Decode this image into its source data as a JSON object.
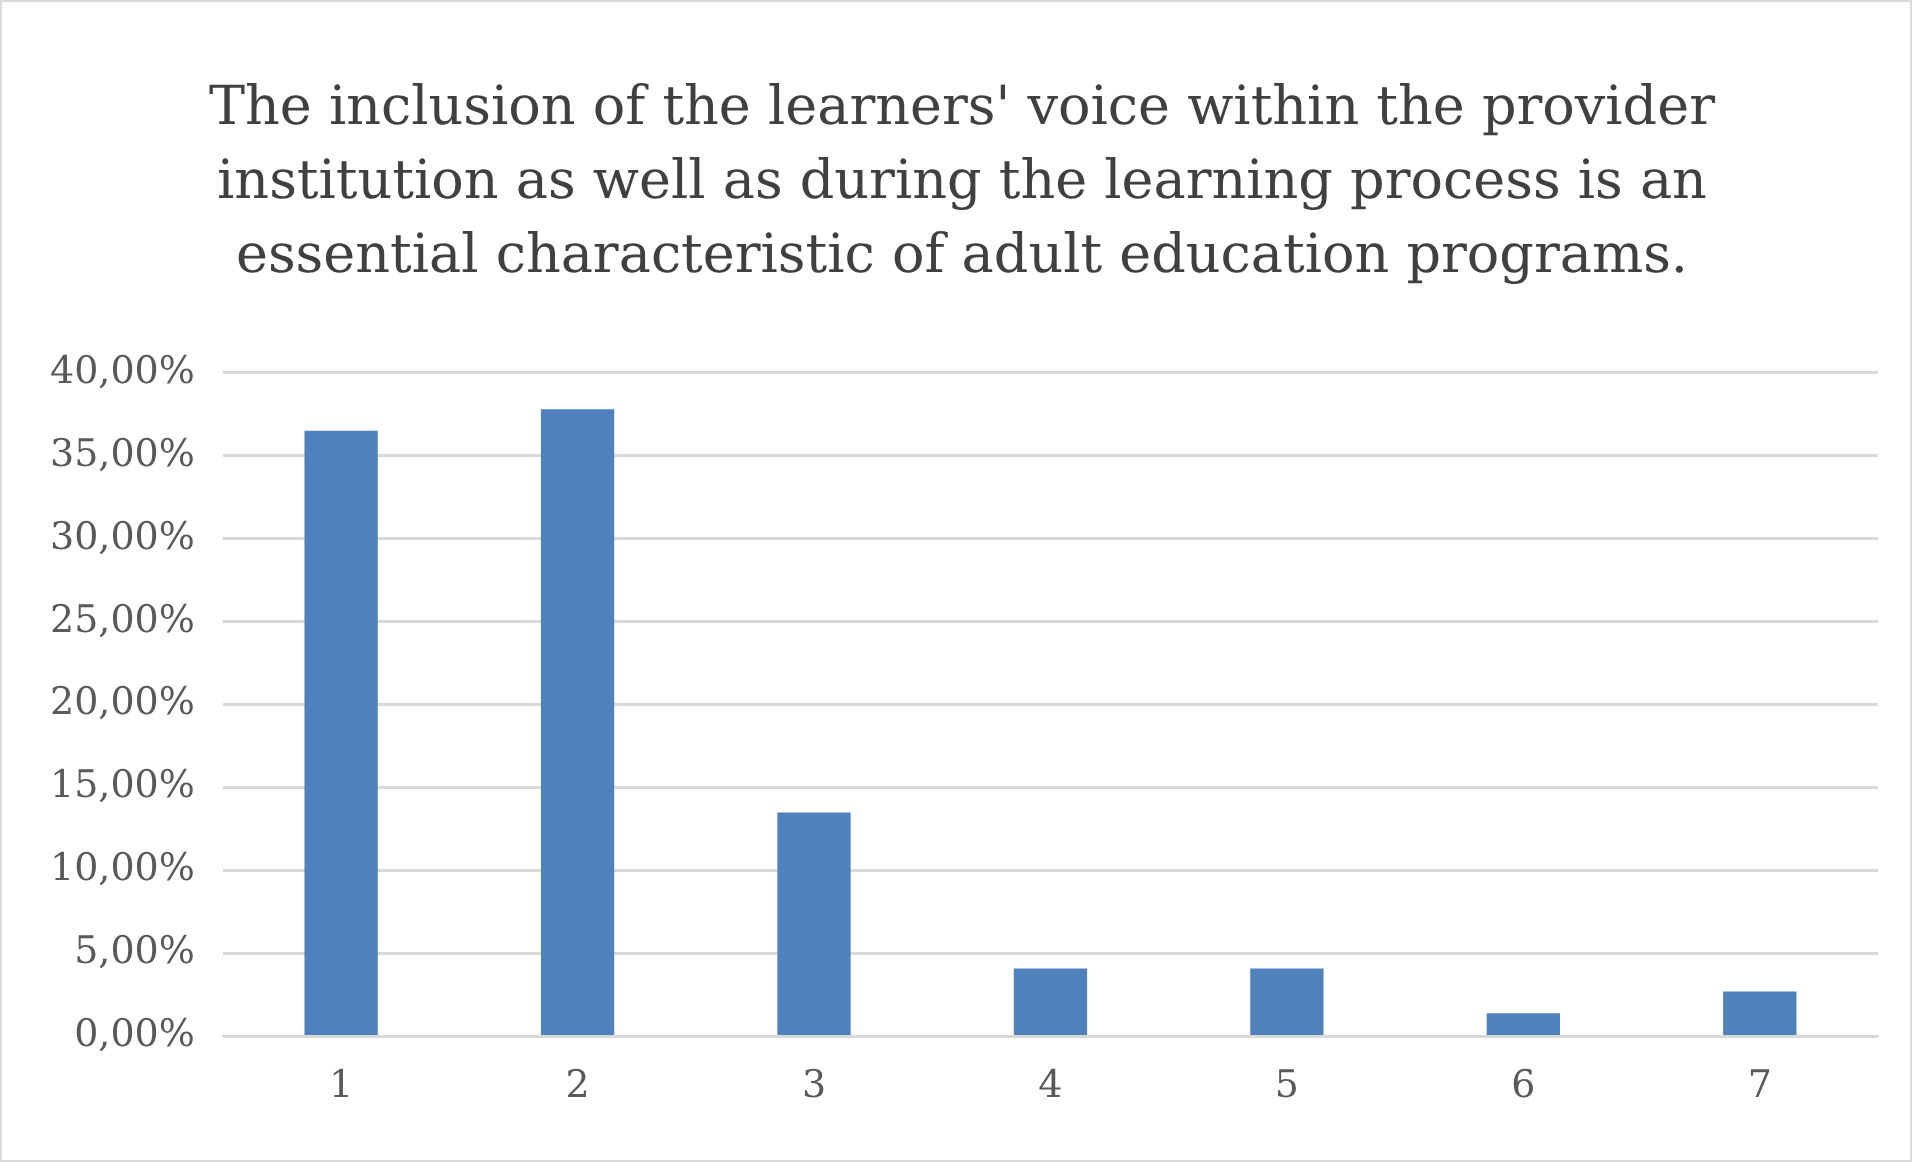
{
  "chart_data": {
    "type": "bar",
    "title": "The inclusion of the learners' voice within the provider institution as well as during the learning process is an essential characteristic of adult education programs.",
    "categories": [
      "1",
      "2",
      "3",
      "4",
      "5",
      "6",
      "7"
    ],
    "values": [
      36.5,
      37.8,
      13.5,
      4.1,
      4.1,
      1.4,
      2.7
    ],
    "color": "#4f81bd",
    "ylim": [
      0,
      40
    ],
    "yticks": [
      {
        "value": 0,
        "label": "0,00%"
      },
      {
        "value": 5,
        "label": "5,00%"
      },
      {
        "value": 10,
        "label": "10,00%"
      },
      {
        "value": 15,
        "label": "15,00%"
      },
      {
        "value": 20,
        "label": "20,00%"
      },
      {
        "value": 25,
        "label": "25,00%"
      },
      {
        "value": 30,
        "label": "30,00%"
      },
      {
        "value": 35,
        "label": "35,00%"
      },
      {
        "value": 40,
        "label": "40,00%"
      }
    ],
    "grid": "y"
  }
}
